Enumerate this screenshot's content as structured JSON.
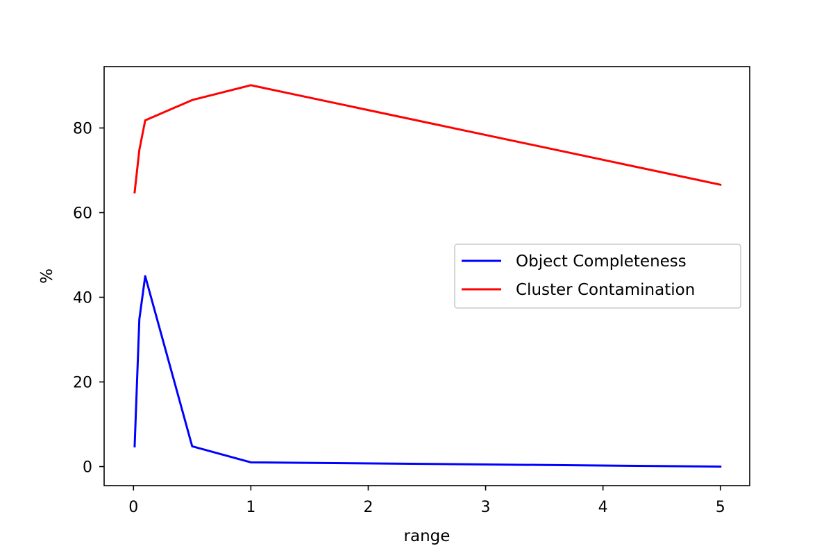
{
  "chart_data": {
    "type": "line",
    "xlabel": "range",
    "ylabel": "%",
    "xlim": [
      -0.25,
      5.25
    ],
    "ylim": [
      -4.5,
      94.5
    ],
    "x_ticks": [
      0,
      1,
      2,
      3,
      4,
      5
    ],
    "y_ticks": [
      0,
      20,
      40,
      60,
      80
    ],
    "grid": false,
    "legend_position": "center-right",
    "series": [
      {
        "name": "Object Completeness",
        "color": "#0000ff",
        "x": [
          0.01,
          0.05,
          0.1,
          0.5,
          1,
          5
        ],
        "y": [
          4.8,
          34.8,
          45.0,
          4.8,
          1.0,
          0.0
        ]
      },
      {
        "name": "Cluster Contamination",
        "color": "#ff0000",
        "x": [
          0.01,
          0.05,
          0.1,
          0.5,
          1,
          5
        ],
        "y": [
          64.8,
          74.8,
          81.8,
          86.6,
          90.1,
          66.6
        ]
      }
    ]
  }
}
